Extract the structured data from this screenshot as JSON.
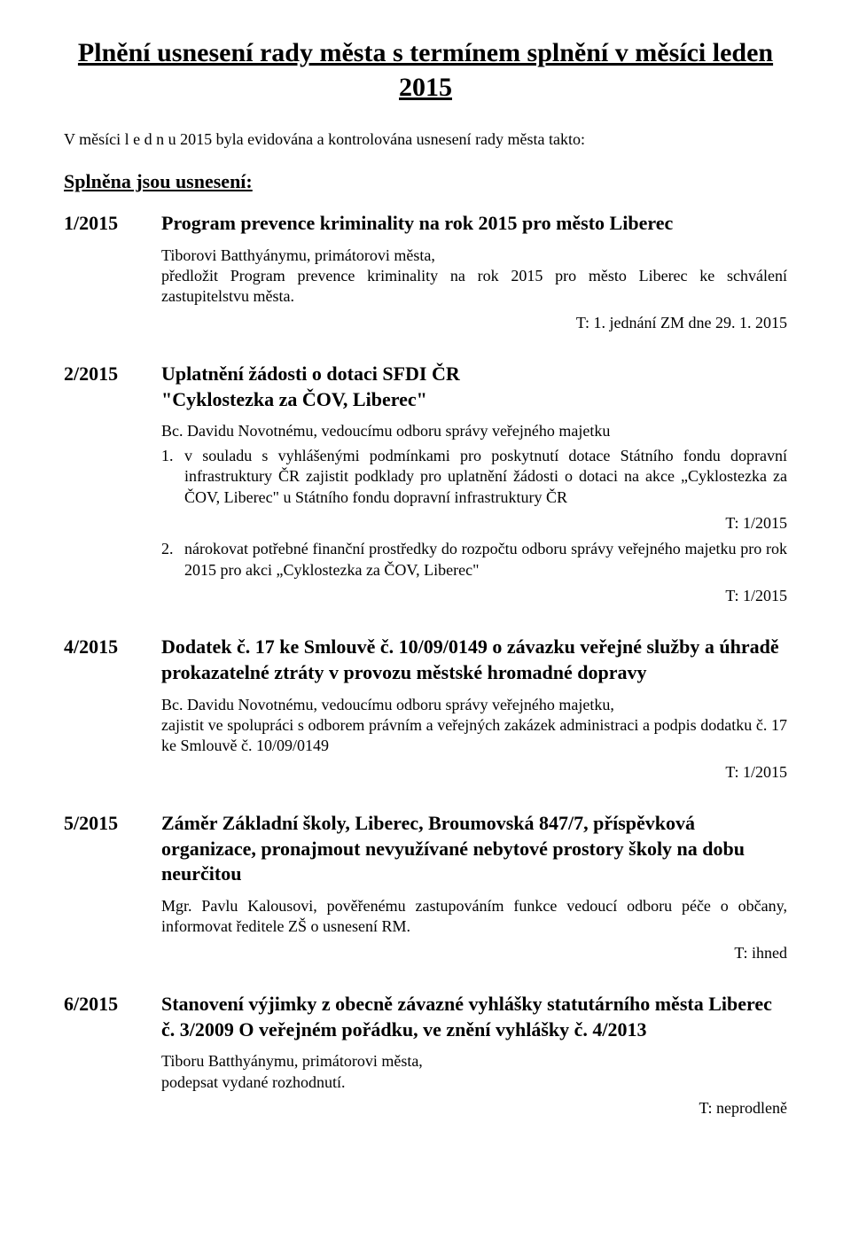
{
  "title": "Plnění usnesení rady města s termínem splnění v měsíci leden 2015",
  "intro": "V měsíci  l e d n u  2015 byla evidována a kontrolována usnesení rady města takto:",
  "section_heading": "Splněna jsou usnesení:",
  "resolutions": {
    "r1": {
      "num": "1/2015",
      "title": "Program prevence kriminality na rok 2015 pro město Liberec",
      "line1": "Tiborovi Batthyánymu, primátorovi města,",
      "line2": "předložit Program prevence kriminality na rok 2015 pro město Liberec ke schválení zastupitelstvu města.",
      "deadline": "T: 1. jednání ZM dne 29. 1. 2015"
    },
    "r2": {
      "num": "2/2015",
      "title": "Uplatnění žádosti o dotaci  SFDI ČR\n\"Cyklostezka za ČOV, Liberec\"",
      "line1": "Bc. Davidu Novotnému, vedoucímu odboru správy veřejného majetku",
      "item1_num": "1.",
      "item1": "v souladu s vyhlášenými  podmínkami pro poskytnutí dotace Státního fondu dopravní infrastruktury ČR zajistit podklady pro uplatnění žádosti o dotaci na akce „Cyklostezka za ČOV, Liberec\" u Státního fondu dopravní infrastruktury ČR",
      "deadline1": "T: 1/2015",
      "item2_num": "2.",
      "item2": "nárokovat potřebné finanční prostředky do rozpočtu odboru správy veřejného majetku pro rok 2015 pro akci „Cyklostezka za ČOV, Liberec\"",
      "deadline2": "T: 1/2015"
    },
    "r4": {
      "num": "4/2015",
      "title": "Dodatek č. 17 ke Smlouvě č. 10/09/0149 o závazku veřejné služby a úhradě prokazatelné ztráty v provozu městské hromadné dopravy",
      "line1": "Bc. Davidu Novotnému, vedoucímu odboru správy veřejného majetku,",
      "line2": "zajistit ve spolupráci s odborem právním a veřejných zakázek administraci a podpis dodatku č. 17 ke Smlouvě č. 10/09/0149",
      "deadline": "T: 1/2015"
    },
    "r5": {
      "num": "5/2015",
      "title": "Záměr Základní školy, Liberec, Broumovská 847/7, příspěvková organizace, pronajmout nevyužívané nebytové prostory školy na dobu neurčitou",
      "line1": "Mgr. Pavlu Kalousovi, pověřenému zastupováním funkce vedoucí odboru péče o občany, informovat ředitele ZŠ o usnesení RM.",
      "deadline": "T: ihned"
    },
    "r6": {
      "num": "6/2015",
      "title": "Stanovení výjimky z obecně závazné vyhlášky statutárního města Liberec č. 3/2009 O veřejném pořádku, ve znění vyhlášky č. 4/2013",
      "line1": "Tiboru Batthyánymu, primátorovi města,",
      "line2": "podepsat vydané rozhodnutí.",
      "deadline": "T: neprodleně"
    }
  }
}
